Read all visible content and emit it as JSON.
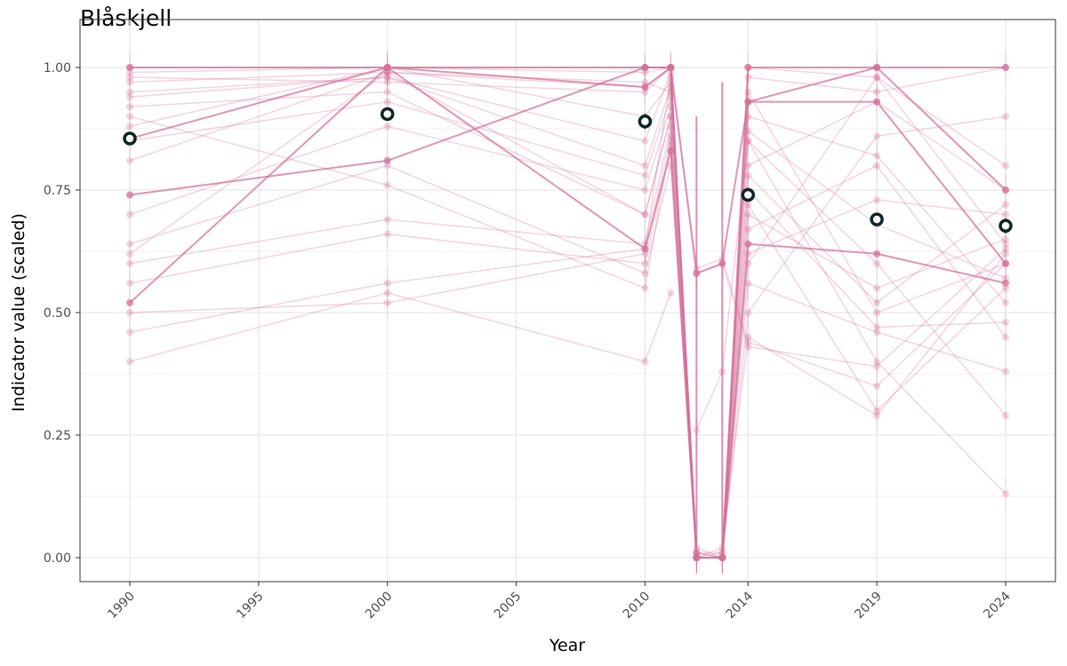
{
  "chart_data": {
    "type": "line",
    "title": "Blåskjell",
    "xlabel": "Year",
    "ylabel": "Indicator value (scaled)",
    "xlim": [
      1988.7,
      2026.3
    ],
    "ylim": [
      -0.05,
      1.1
    ],
    "x_ticks": [
      1990,
      1995,
      2000,
      2005,
      2010,
      2014,
      2019,
      2024
    ],
    "x_tick_labels": [
      "1990",
      "1995",
      "2000",
      "2005",
      "2010",
      "2014",
      "2019",
      "2024"
    ],
    "y_ticks": [
      0,
      0.25,
      0.5,
      0.75,
      1
    ],
    "y_tick_labels": [
      "0.00",
      "0.25",
      "0.50",
      "0.75",
      "1.00"
    ],
    "grid": true,
    "series_color": "#d4719a",
    "mean_color": "#0d2626",
    "x": [
      1990,
      2000,
      2010,
      2011,
      2012,
      2013,
      2014,
      2019,
      2024
    ],
    "series": [
      {
        "name": "s1",
        "values": [
          1,
          1,
          1,
          1,
          0,
          0,
          1,
          1,
          1
        ]
      },
      {
        "name": "s2",
        "values": [
          0.855,
          1,
          0.96,
          1,
          0.58,
          0.6,
          0.93,
          1,
          0.75
        ]
      },
      {
        "name": "s3",
        "values": [
          0.74,
          0.81,
          1,
          1,
          0,
          0,
          0.93,
          0.93,
          0.6
        ]
      },
      {
        "name": "s4",
        "values": [
          0.52,
          1,
          0.63,
          0.83,
          0,
          0,
          0.64,
          0.62,
          0.56
        ]
      },
      {
        "name": "s5",
        "values": [
          0.4,
          0.54,
          0.4,
          0.54,
          null,
          null,
          null,
          null,
          null
        ]
      },
      {
        "name": "s6",
        "values": [
          0.97,
          0.99,
          0.97,
          0.95,
          0.01,
          0.01,
          0.95,
          0.5,
          0.6
        ]
      },
      {
        "name": "s7",
        "values": [
          0.46,
          0.56,
          0.63,
          0.98,
          0,
          0.02,
          0.45,
          0.29,
          0.62
        ]
      },
      {
        "name": "s8",
        "values": [
          0.62,
          0.99,
          0.7,
          0.9,
          0.01,
          0,
          0.85,
          0.4,
          0.13
        ]
      },
      {
        "name": "s9",
        "values": [
          0.9,
          0.76,
          0.55,
          0.85,
          0,
          0,
          0.7,
          0.55,
          0.65
        ]
      },
      {
        "name": "s10",
        "values": [
          0.81,
          0.99,
          0.96,
          1,
          0.59,
          0.61,
          0.44,
          0.35,
          0.6
        ]
      },
      {
        "name": "s11",
        "values": [
          1,
          1,
          0.9,
          0.97,
          0.02,
          0,
          0.8,
          0.93,
          0.75
        ]
      },
      {
        "name": "s12",
        "values": [
          0.94,
          0.98,
          0.8,
          0.96,
          0,
          0,
          0.9,
          0.82,
          0.52
        ]
      },
      {
        "name": "s13",
        "values": [
          0.6,
          0.69,
          0.64,
          0.88,
          0,
          0.01,
          0.56,
          0.46,
          0.38
        ]
      },
      {
        "name": "s14",
        "values": [
          0.5,
          0.52,
          0.62,
          0.86,
          0.01,
          0,
          0.62,
          0.73,
          0.7
        ]
      },
      {
        "name": "s15",
        "values": [
          0.88,
          1,
          0.99,
          1,
          0,
          0,
          1,
          0.98,
          0.8
        ]
      },
      {
        "name": "s16",
        "values": [
          0.95,
          0.98,
          0.85,
          0.99,
          0,
          0,
          0.75,
          0.47,
          0.48
        ]
      },
      {
        "name": "s17",
        "values": [
          0.7,
          0.88,
          0.75,
          0.92,
          0,
          0,
          0.5,
          0.86,
          0.9
        ]
      },
      {
        "name": "s18",
        "values": [
          0.99,
          1,
          1,
          1,
          0,
          0,
          0.87,
          0.68,
          0.57
        ]
      },
      {
        "name": "s19",
        "values": [
          null,
          null,
          null,
          null,
          0.58,
          0.6,
          0.43,
          0.39,
          0.63
        ]
      },
      {
        "name": "s20",
        "values": [
          null,
          null,
          null,
          null,
          0.26,
          0.38,
          0.85,
          0.6,
          0.29
        ]
      },
      {
        "name": "s21",
        "values": [
          0.64,
          0.8,
          0.58,
          0.8,
          0.01,
          0,
          0.6,
          0.98,
          0.64
        ]
      },
      {
        "name": "s22",
        "values": [
          0.92,
          0.95,
          0.7,
          0.9,
          0,
          0,
          0.67,
          0.8,
          0.45
        ]
      },
      {
        "name": "s23",
        "values": [
          0.98,
          0.97,
          0.95,
          1,
          0,
          0,
          0.98,
          0.95,
          1
        ]
      },
      {
        "name": "s24",
        "values": [
          0.85,
          0.93,
          0.78,
          0.94,
          0,
          0,
          0.72,
          0.3,
          0.55
        ]
      },
      {
        "name": "s25",
        "values": [
          0.56,
          0.66,
          0.6,
          0.84,
          0,
          0,
          0.78,
          0.52,
          0.72
        ]
      }
    ],
    "means": [
      {
        "x": 1990,
        "y": 0.855,
        "err": 0.01
      },
      {
        "x": 2000,
        "y": 0.905,
        "err": 0.008
      },
      {
        "x": 2010,
        "y": 0.89,
        "err": 0.015
      },
      {
        "x": 2014,
        "y": 0.74,
        "err": 0.01
      },
      {
        "x": 2019,
        "y": 0.69,
        "err": 0.01
      },
      {
        "x": 2024,
        "y": 0.677,
        "err": 0.015
      }
    ]
  }
}
